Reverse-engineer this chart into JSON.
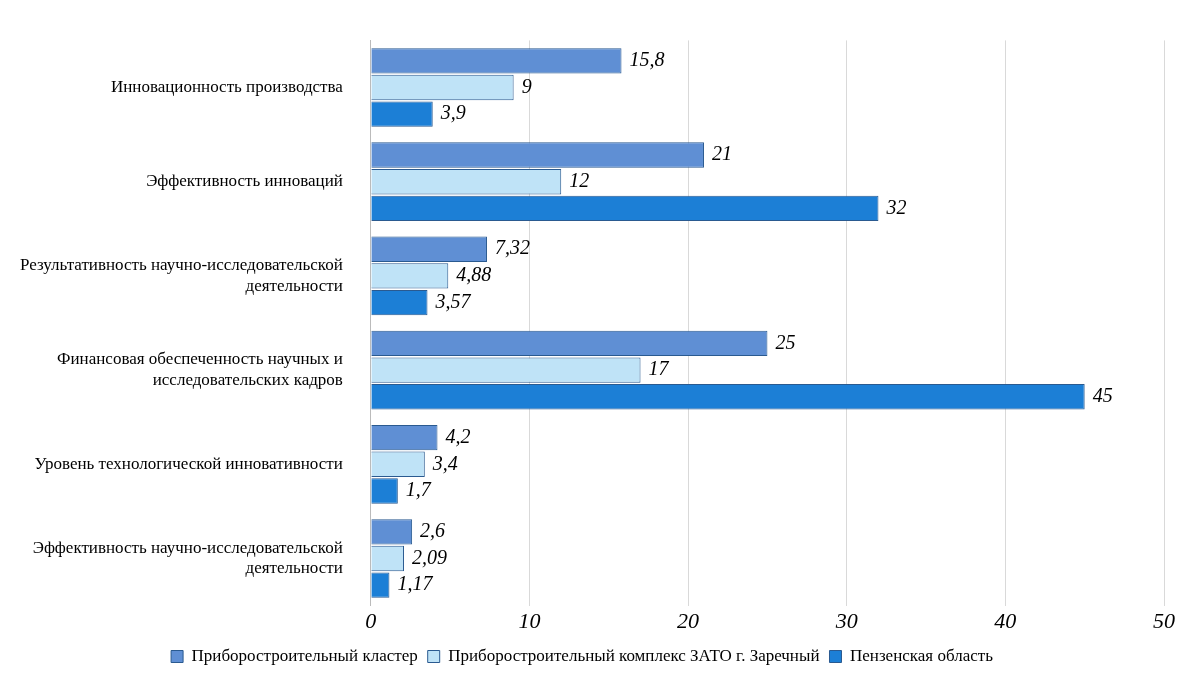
{
  "chart_data": {
    "type": "bar",
    "orientation": "horizontal",
    "categories": [
      "Инновационность производства",
      "Эффективность инноваций",
      "Результативность научно-исследовательской деятельности",
      "Финансовая обеспеченность научных и исследовательских кадров",
      "Уровень технологической инновативности",
      "Эффективность научно-исследовательской деятельности"
    ],
    "series": [
      {
        "name": "Приборостроительный кластер",
        "color": "#5f8fd4",
        "values": [
          15.8,
          21,
          7.32,
          25,
          4.2,
          2.6
        ],
        "value_labels": [
          "15,8",
          "21",
          "7,32",
          "25",
          "4,2",
          "2,6"
        ]
      },
      {
        "name": "Приборостроительный комплекс ЗАТО г. Заречный",
        "color": "#bfe3f7",
        "values": [
          9,
          12,
          4.88,
          17,
          3.4,
          2.09
        ],
        "value_labels": [
          "9",
          "12",
          "4,88",
          "17",
          "3,4",
          "2,09"
        ]
      },
      {
        "name": "Пензенская область",
        "color": "#1c7fd6",
        "values": [
          3.9,
          32,
          3.57,
          45,
          1.7,
          1.17
        ],
        "value_labels": [
          "3,9",
          "32",
          "3,57",
          "45",
          "1,7",
          "1,17"
        ]
      }
    ],
    "xlim": [
      0,
      50
    ],
    "xticks": [
      0,
      10,
      20,
      30,
      40,
      50
    ],
    "grid": "x",
    "legend": "bottom"
  }
}
